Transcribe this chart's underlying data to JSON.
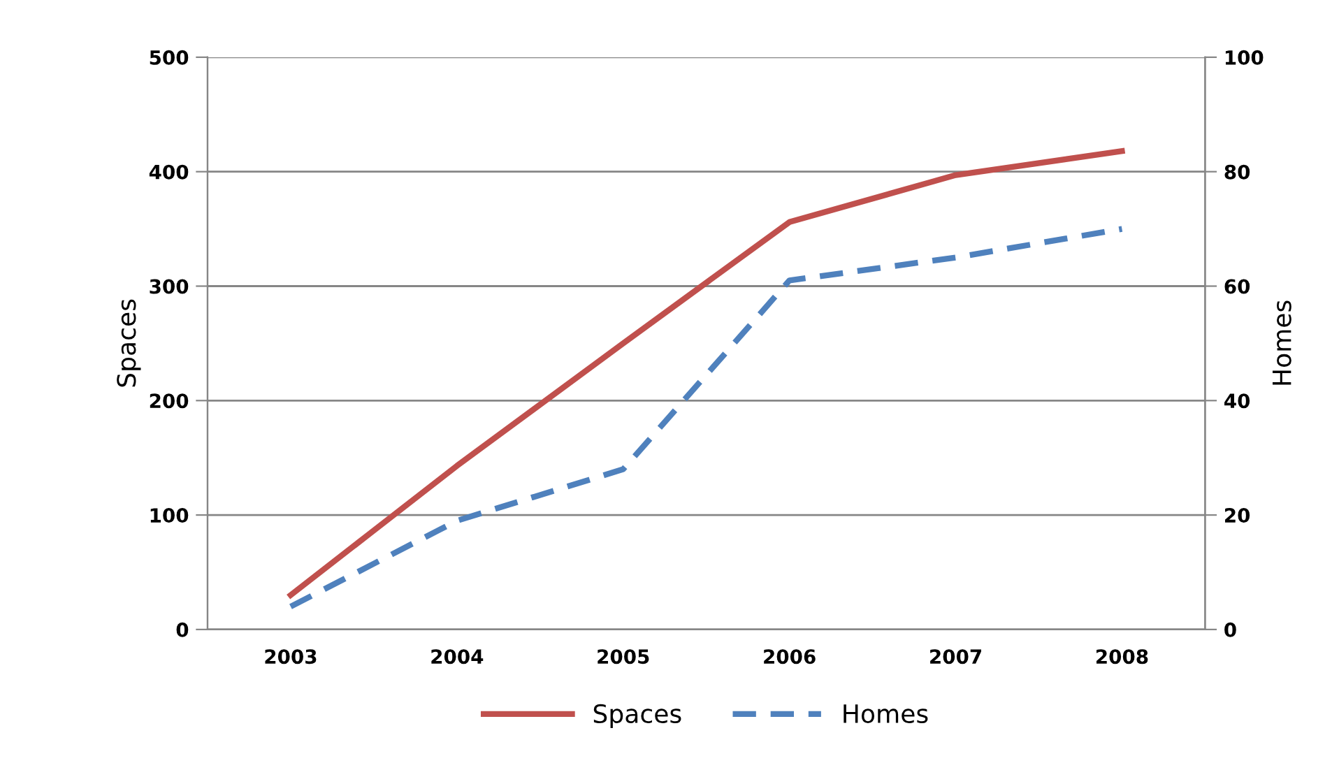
{
  "chart_data": {
    "type": "line",
    "categories": [
      "2003",
      "2004",
      "2005",
      "2006",
      "2007",
      "2008"
    ],
    "series": [
      {
        "name": "Spaces",
        "color": "#c0504d",
        "values": [
          30,
          143,
          250,
          356,
          397,
          418
        ],
        "line_style": "solid"
      },
      {
        "name": "Homes",
        "color": "#4f81bd",
        "values": [
          4,
          19,
          28,
          61,
          65,
          70
        ],
        "axis": "y2",
        "line_style": "dashed"
      }
    ],
    "ylabel": "Spaces",
    "y2label": "Homes",
    "ylim": [
      0,
      500
    ],
    "yticks": [
      0,
      100,
      200,
      300,
      400,
      500
    ],
    "y2lim": [
      0,
      100
    ],
    "y2ticks": [
      0,
      20,
      40,
      60,
      80,
      100
    ],
    "grid": "y",
    "legend": "bottom",
    "marker": "none"
  }
}
